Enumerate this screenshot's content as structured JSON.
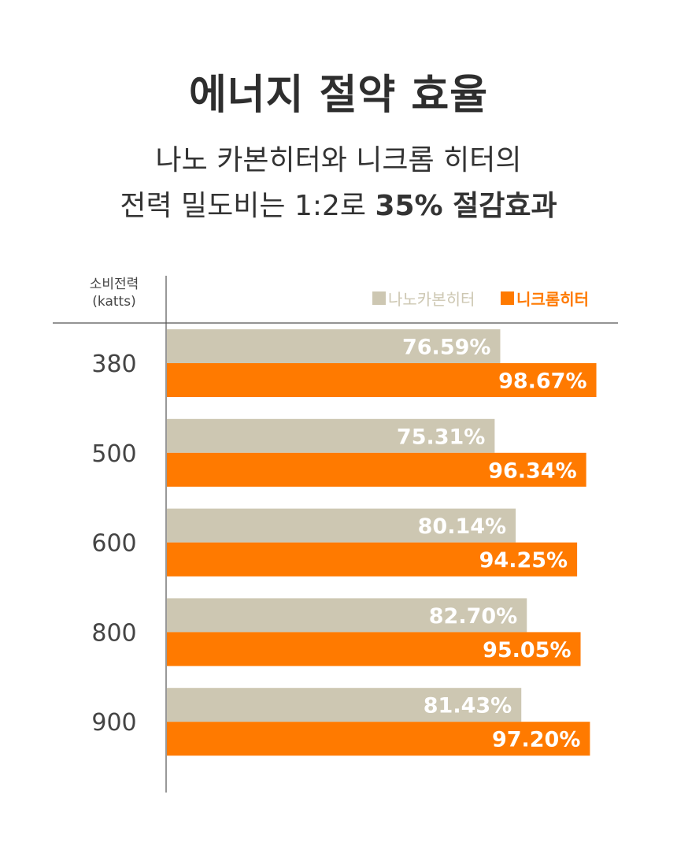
{
  "title": "에너지 절약 효율",
  "subtitle": {
    "line1": "나노 카본히터와 니크롬 히터의",
    "line2_prefix": "전력 밀도비는 1:2로 ",
    "line2_bold": "35% 절감효과"
  },
  "colors": {
    "series1": "#cdc7b2",
    "series2": "#ff7a00",
    "axis": "#555555"
  },
  "chart_data": {
    "type": "bar",
    "orientation": "horizontal",
    "ylabel": [
      "소비전력",
      "(katts)"
    ],
    "categories": [
      "380",
      "500",
      "600",
      "800",
      "900"
    ],
    "series": [
      {
        "name": "나노카본히터",
        "values": [
          76.59,
          75.31,
          80.14,
          82.7,
          81.43
        ],
        "labels": [
          "76.59%",
          "75.31%",
          "80.14%",
          "82.70%",
          "81.43%"
        ]
      },
      {
        "name": "니크롬히터",
        "values": [
          98.67,
          96.34,
          94.25,
          95.05,
          97.2
        ],
        "labels": [
          "98.67%",
          "96.34%",
          "94.25%",
          "95.05%",
          "97.20%"
        ]
      }
    ],
    "legend": "top-right",
    "grid": false
  }
}
